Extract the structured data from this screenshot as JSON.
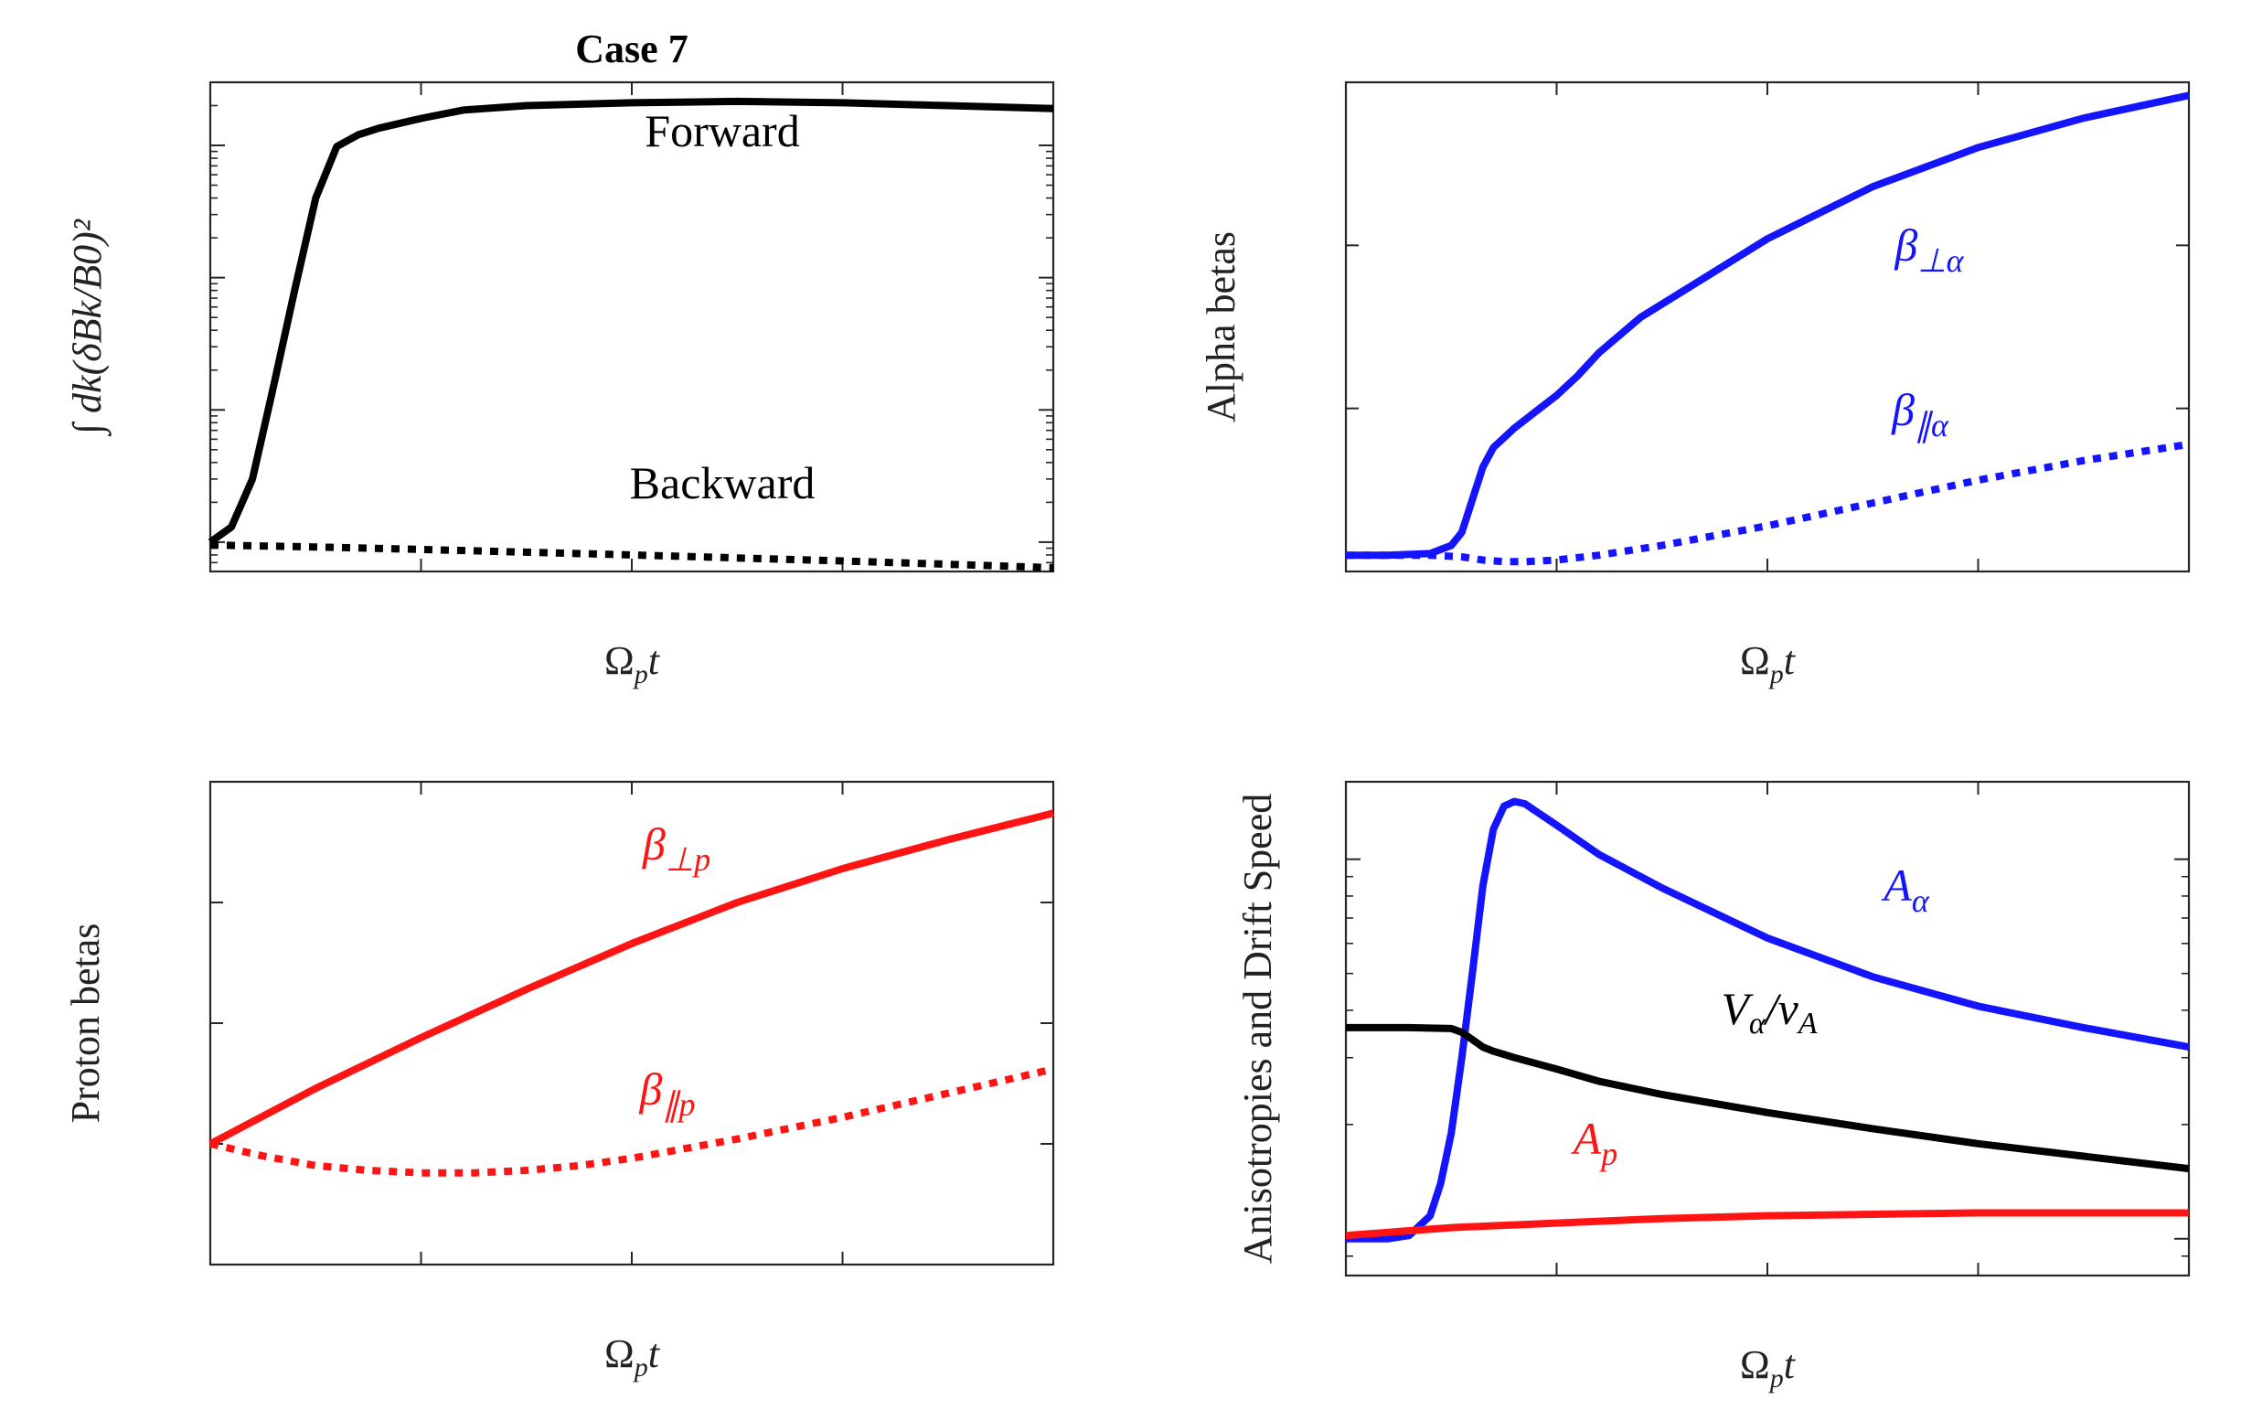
{
  "chart_data": [
    {
      "type": "line",
      "title": "Case 7",
      "xlabel": "Ωpt",
      "ylabel": "∫ dk(δBk/B0)²",
      "xlim": [
        0,
        400
      ],
      "ylim": [
        6e-07,
        0.003
      ],
      "yscale": "log",
      "xticks": [
        "0",
        "100",
        "200",
        "300",
        "400"
      ],
      "yticks": [
        {
          "value": 1e-06,
          "base": "10",
          "exp": "-6"
        },
        {
          "value": 1e-05,
          "base": "10",
          "exp": "-5"
        },
        {
          "value": 0.0001,
          "base": "10",
          "exp": "-4"
        },
        {
          "value": 0.001,
          "base": "10",
          "exp": "-3"
        }
      ],
      "grid": false,
      "series": [
        {
          "name": "Forward",
          "color": "#000000",
          "dash": "solid",
          "x": [
            0,
            10,
            20,
            30,
            40,
            50,
            60,
            70,
            80,
            100,
            120,
            150,
            200,
            250,
            300,
            350,
            400
          ],
          "y": [
            1e-06,
            1.3e-06,
            3e-06,
            1.5e-05,
            8e-05,
            0.0004,
            0.00098,
            0.0012,
            0.00135,
            0.0016,
            0.00185,
            0.002,
            0.0021,
            0.00215,
            0.0021,
            0.002,
            0.0019
          ]
        },
        {
          "name": "Backward",
          "color": "#000000",
          "dash": "dotted",
          "x": [
            0,
            50,
            100,
            150,
            200,
            250,
            300,
            350,
            400
          ],
          "y": [
            9.5e-07,
            9.2e-07,
            8.8e-07,
            8.4e-07,
            8e-07,
            7.6e-07,
            7.2e-07,
            6.8e-07,
            6.4e-07
          ]
        }
      ]
    },
    {
      "type": "line",
      "xlabel": "Ωpt",
      "ylabel": "Alpha betas",
      "xlim": [
        0,
        400
      ],
      "ylim": [
        0,
        0.15
      ],
      "xticks": [
        "0",
        "100",
        "200",
        "300",
        "400"
      ],
      "yticks": [
        "0",
        "0.05",
        "0.1",
        "0.15"
      ],
      "grid": false,
      "series": [
        {
          "name": "β⊥α",
          "color": "#1414ff",
          "dash": "solid",
          "x": [
            0,
            20,
            40,
            50,
            55,
            60,
            65,
            70,
            80,
            90,
            100,
            110,
            120,
            140,
            160,
            200,
            250,
            300,
            350,
            400
          ],
          "y": [
            0.005,
            0.005,
            0.0055,
            0.008,
            0.012,
            0.022,
            0.032,
            0.038,
            0.044,
            0.049,
            0.054,
            0.06,
            0.067,
            0.078,
            0.086,
            0.102,
            0.118,
            0.13,
            0.139,
            0.146
          ]
        },
        {
          "name": "β∥α",
          "color": "#1414ff",
          "dash": "dotted",
          "x": [
            0,
            40,
            55,
            65,
            75,
            85,
            100,
            120,
            150,
            200,
            250,
            300,
            350,
            400
          ],
          "y": [
            0.005,
            0.005,
            0.0045,
            0.0035,
            0.003,
            0.003,
            0.0035,
            0.005,
            0.008,
            0.014,
            0.021,
            0.028,
            0.034,
            0.039
          ]
        }
      ]
    },
    {
      "type": "line",
      "xlabel": "Ωpt",
      "ylabel": "Proton betas",
      "xlim": [
        0,
        400
      ],
      "ylim": [
        0.045,
        0.065
      ],
      "xticks": [
        "0",
        "100",
        "200",
        "300",
        "400"
      ],
      "yticks": [
        "0.045",
        "0.05",
        "0.055",
        "0.06",
        "0.065"
      ],
      "grid": false,
      "series": [
        {
          "name": "β⊥p",
          "color": "#ff1414",
          "dash": "solid",
          "x": [
            0,
            50,
            100,
            150,
            200,
            250,
            300,
            350,
            400
          ],
          "y": [
            0.05,
            0.0523,
            0.0544,
            0.0564,
            0.0583,
            0.06,
            0.0614,
            0.0626,
            0.0637
          ]
        },
        {
          "name": "β∥p",
          "color": "#ff1414",
          "dash": "dotted",
          "x": [
            0,
            25,
            50,
            75,
            100,
            125,
            150,
            175,
            200,
            250,
            300,
            350,
            400
          ],
          "y": [
            0.05,
            0.0495,
            0.0491,
            0.0489,
            0.0488,
            0.0488,
            0.0489,
            0.0491,
            0.0494,
            0.0502,
            0.0511,
            0.0521,
            0.0531
          ]
        }
      ]
    },
    {
      "type": "line",
      "xlabel": "Ωpt",
      "ylabel": "Anisotropies and Drift Speed",
      "xlim": [
        0,
        400
      ],
      "ylim": [
        0.8,
        16
      ],
      "yscale": "log",
      "xticks": [
        "0",
        "100",
        "200",
        "300",
        "400"
      ],
      "yticks": [
        {
          "value": 1,
          "base": "10",
          "exp": "0"
        },
        {
          "value": 10,
          "base": "10",
          "exp": "1"
        }
      ],
      "grid": false,
      "series": [
        {
          "name": "Aα",
          "color": "#1414ff",
          "dash": "solid",
          "x": [
            0,
            20,
            30,
            40,
            45,
            50,
            55,
            60,
            65,
            70,
            75,
            80,
            85,
            90,
            100,
            120,
            150,
            200,
            250,
            300,
            350,
            400
          ],
          "y": [
            1.0,
            1.0,
            1.02,
            1.15,
            1.4,
            1.9,
            3.0,
            5.0,
            8.5,
            12.0,
            13.8,
            14.2,
            14.0,
            13.4,
            12.3,
            10.3,
            8.4,
            6.2,
            4.9,
            4.1,
            3.6,
            3.2
          ]
        },
        {
          "name": "Vα/vA",
          "color": "#000000",
          "dash": "solid",
          "x": [
            0,
            30,
            50,
            55,
            60,
            65,
            70,
            80,
            100,
            120,
            150,
            200,
            250,
            300,
            350,
            400
          ],
          "y": [
            3.6,
            3.6,
            3.58,
            3.5,
            3.35,
            3.2,
            3.12,
            3.0,
            2.8,
            2.6,
            2.4,
            2.15,
            1.95,
            1.78,
            1.65,
            1.53
          ]
        },
        {
          "name": "Ap",
          "color": "#ff1414",
          "dash": "solid",
          "x": [
            0,
            50,
            100,
            150,
            200,
            250,
            300,
            350,
            400
          ],
          "y": [
            1.02,
            1.07,
            1.1,
            1.13,
            1.15,
            1.16,
            1.17,
            1.17,
            1.17
          ]
        }
      ]
    }
  ]
}
